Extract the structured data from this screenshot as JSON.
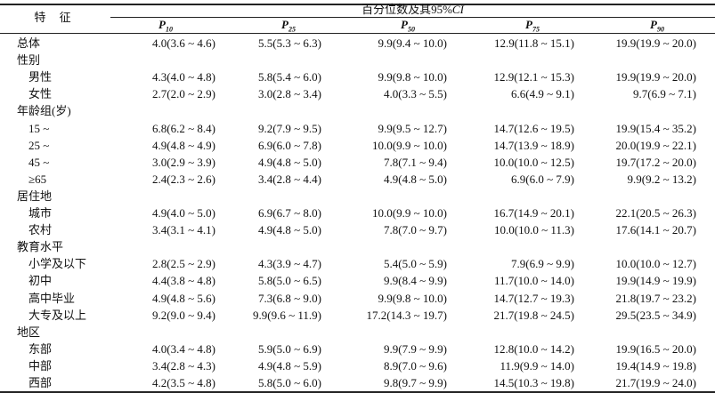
{
  "header": {
    "feature": "特 征",
    "group_prefix": "百分位数及其95%",
    "group_ci": "CI",
    "percentiles": [
      {
        "p": "P",
        "sub": "10"
      },
      {
        "p": "P",
        "sub": "25"
      },
      {
        "p": "P",
        "sub": "50"
      },
      {
        "p": "P",
        "sub": "75"
      },
      {
        "p": "P",
        "sub": "90"
      }
    ]
  },
  "rows": [
    {
      "label": "总体",
      "indent": false,
      "values": [
        "4.0(3.6 ~ 4.6)",
        "5.5(5.3 ~ 6.3)",
        "9.9(9.4 ~ 10.0)",
        "12.9(11.8 ~ 15.1)",
        "19.9(19.9 ~ 20.0)"
      ]
    },
    {
      "label": "性别",
      "indent": false,
      "values": [
        "",
        "",
        "",
        "",
        ""
      ]
    },
    {
      "label": "男性",
      "indent": true,
      "values": [
        "4.3(4.0 ~ 4.8)",
        "5.8(5.4 ~ 6.0)",
        "9.9(9.8 ~ 10.0)",
        "12.9(12.1 ~ 15.3)",
        "19.9(19.9 ~ 20.0)"
      ]
    },
    {
      "label": "女性",
      "indent": true,
      "values": [
        "2.7(2.0 ~ 2.9)",
        "3.0(2.8 ~ 3.4)",
        "4.0(3.3 ~ 5.5)",
        "6.6(4.9 ~ 9.1)",
        "9.7(6.9 ~ 7.1)"
      ]
    },
    {
      "label": "年龄组(岁)",
      "indent": false,
      "values": [
        "",
        "",
        "",
        "",
        ""
      ]
    },
    {
      "label": "15 ~",
      "indent": true,
      "values": [
        "6.8(6.2 ~ 8.4)",
        "9.2(7.9 ~ 9.5)",
        "9.9(9.5 ~ 12.7)",
        "14.7(12.6 ~ 19.5)",
        "19.9(15.4 ~ 35.2)"
      ]
    },
    {
      "label": "25 ~",
      "indent": true,
      "values": [
        "4.9(4.8 ~ 4.9)",
        "6.9(6.0 ~ 7.8)",
        "10.0(9.9 ~ 10.0)",
        "14.7(13.9 ~ 18.9)",
        "20.0(19.9 ~ 22.1)"
      ]
    },
    {
      "label": "45 ~",
      "indent": true,
      "values": [
        "3.0(2.9 ~ 3.9)",
        "4.9(4.8 ~ 5.0)",
        "7.8(7.1 ~ 9.4)",
        "10.0(10.0 ~ 12.5)",
        "19.7(17.2 ~ 20.0)"
      ]
    },
    {
      "label": "≥65",
      "indent": true,
      "values": [
        "2.4(2.3 ~ 2.6)",
        "3.4(2.8 ~ 4.4)",
        "4.9(4.8 ~ 5.0)",
        "6.9(6.0 ~ 7.9)",
        "9.9(9.2 ~ 13.2)"
      ]
    },
    {
      "label": "居住地",
      "indent": false,
      "values": [
        "",
        "",
        "",
        "",
        ""
      ]
    },
    {
      "label": "城市",
      "indent": true,
      "values": [
        "4.9(4.0 ~ 5.0)",
        "6.9(6.7 ~ 8.0)",
        "10.0(9.9 ~ 10.0)",
        "16.7(14.9 ~ 20.1)",
        "22.1(20.5 ~ 26.3)"
      ]
    },
    {
      "label": "农村",
      "indent": true,
      "values": [
        "3.4(3.1 ~ 4.1)",
        "4.9(4.8 ~ 5.0)",
        "7.8(7.0 ~ 9.7)",
        "10.0(10.0 ~ 11.3)",
        "17.6(14.1 ~ 20.7)"
      ]
    },
    {
      "label": "教育水平",
      "indent": false,
      "values": [
        "",
        "",
        "",
        "",
        ""
      ]
    },
    {
      "label": "小学及以下",
      "indent": true,
      "values": [
        "2.8(2.5 ~ 2.9)",
        "4.3(3.9 ~ 4.7)",
        "5.4(5.0 ~ 5.9)",
        "7.9(6.9 ~ 9.9)",
        "10.0(10.0 ~ 12.7)"
      ]
    },
    {
      "label": "初中",
      "indent": true,
      "values": [
        "4.4(3.8 ~ 4.8)",
        "5.8(5.0 ~ 6.5)",
        "9.9(8.4 ~ 9.9)",
        "11.7(10.0 ~ 14.0)",
        "19.9(14.9 ~ 19.9)"
      ]
    },
    {
      "label": "高中毕业",
      "indent": true,
      "values": [
        "4.9(4.8 ~ 5.6)",
        "7.3(6.8 ~ 9.0)",
        "9.9(9.8 ~ 10.0)",
        "14.7(12.7 ~ 19.3)",
        "21.8(19.7 ~ 23.2)"
      ]
    },
    {
      "label": "大专及以上",
      "indent": true,
      "values": [
        "9.2(9.0 ~ 9.4)",
        "9.9(9.6 ~ 11.9)",
        "17.2(14.3 ~ 19.7)",
        "21.7(19.8 ~ 24.5)",
        "29.5(23.5 ~ 34.9)"
      ]
    },
    {
      "label": "地区",
      "indent": false,
      "values": [
        "",
        "",
        "",
        "",
        ""
      ]
    },
    {
      "label": "东部",
      "indent": true,
      "values": [
        "4.0(3.4 ~ 4.8)",
        "5.9(5.0 ~ 6.9)",
        "9.9(7.9 ~ 9.9)",
        "12.8(10.0 ~ 14.2)",
        "19.9(16.5 ~ 20.0)"
      ]
    },
    {
      "label": "中部",
      "indent": true,
      "values": [
        "3.4(2.8 ~ 4.3)",
        "4.9(4.8 ~ 5.9)",
        "8.9(7.0 ~ 9.6)",
        "11.9(9.9 ~ 14.0)",
        "19.4(14.9 ~ 19.8)"
      ]
    },
    {
      "label": "西部",
      "indent": true,
      "values": [
        "4.2(3.5 ~ 4.8)",
        "5.8(5.0 ~ 6.0)",
        "9.8(9.7 ~ 9.9)",
        "14.5(10.3 ~ 19.8)",
        "21.7(19.9 ~ 24.0)"
      ]
    }
  ]
}
